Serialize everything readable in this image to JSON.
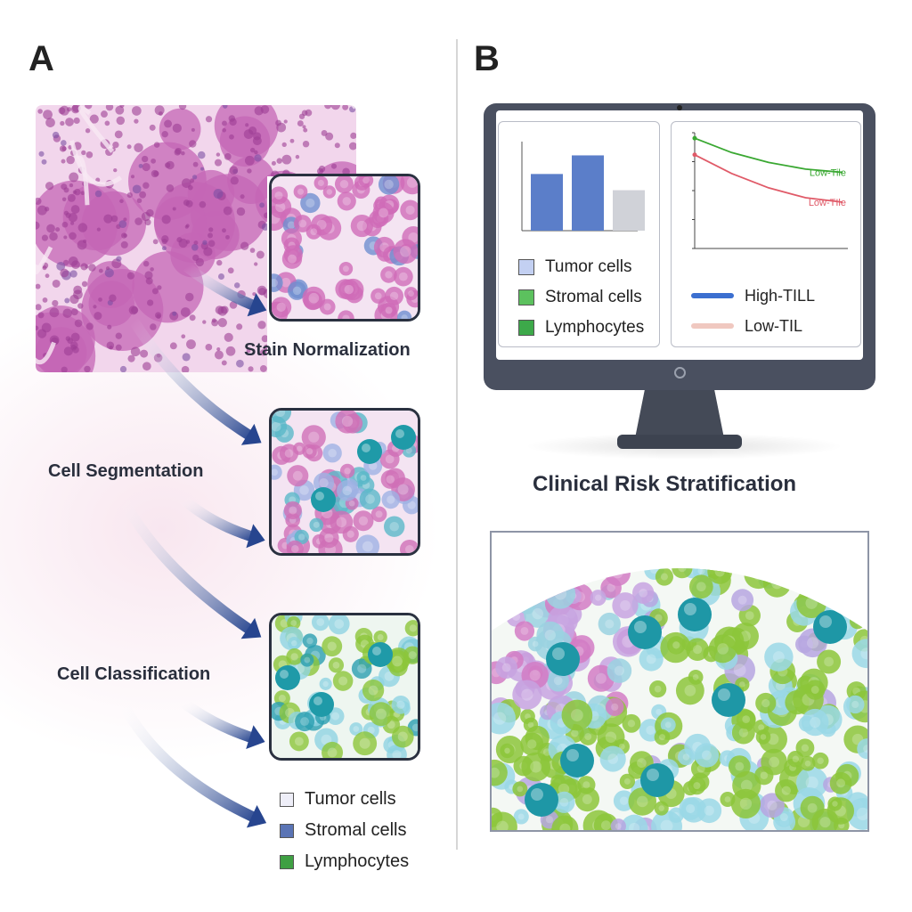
{
  "panels": {
    "a": "A",
    "b": "B"
  },
  "steps": {
    "stain_normalization": "Stain Normalization",
    "cell_segmentation": "Cell Segmentation",
    "cell_classification": "Cell Classification"
  },
  "legend_a": [
    {
      "label": "Tumor cells",
      "color": "#eeeef8"
    },
    {
      "label": "Stromal cells",
      "color": "#5a74b5"
    },
    {
      "label": "Lymphocytes",
      "color": "#3fa043"
    }
  ],
  "clinical_title": "Clinical Risk Stratification",
  "screen_legend": [
    {
      "label": "Tumor cells",
      "color": "#c3d0f2"
    },
    {
      "label": "Stromal cells",
      "color": "#5cc15e"
    },
    {
      "label": "Lymphocytes",
      "color": "#3da94a"
    }
  ],
  "line_legend": [
    {
      "label": "High-TILL",
      "color": "#3b6fd0"
    },
    {
      "label": "Low-TIL",
      "color": "#f0c8c0"
    }
  ],
  "chart_data": [
    {
      "type": "bar",
      "categories": [
        "",
        "",
        ""
      ],
      "values": [
        70,
        93,
        50
      ],
      "colors": [
        "#5b7ec9",
        "#5b7ec9",
        "#d0d2d8"
      ],
      "ylim": [
        0,
        110
      ]
    },
    {
      "type": "line",
      "series": [
        {
          "name": "Low-Tile",
          "color": "#3aa832",
          "values": [
            1.0,
            0.87,
            0.78,
            0.72,
            0.69
          ]
        },
        {
          "name": "Low-TIle",
          "color": "#e05a68",
          "values": [
            0.85,
            0.68,
            0.55,
            0.46,
            0.42
          ]
        }
      ],
      "x": [
        0,
        1,
        2,
        3,
        4
      ],
      "ylim": [
        0,
        1.05
      ]
    }
  ],
  "colors": {
    "tissue_pink": "#c46bb8",
    "tumor": "#d56fb8",
    "stromal": "#9ad2e0",
    "lymph": "#8cc63a",
    "teal": "#2a9fb0",
    "arrow": "#27458f"
  }
}
